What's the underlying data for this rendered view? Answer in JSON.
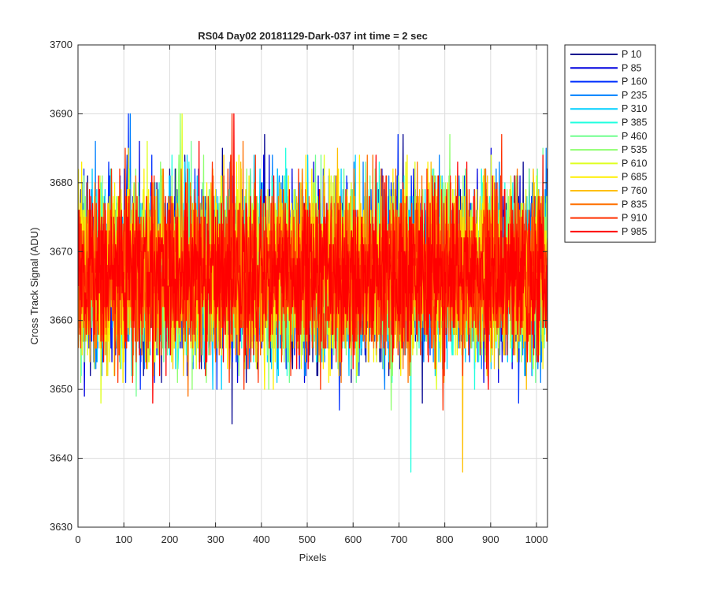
{
  "chart_data": {
    "type": "line",
    "title": "RS04 Day02 20181129-Dark-037 int time = 2 sec",
    "xlabel": "Pixels",
    "ylabel": "Cross Track Signal (ADU)",
    "xlim": [
      0,
      1024
    ],
    "ylim": [
      3630,
      3700
    ],
    "xticks": [
      0,
      100,
      200,
      300,
      400,
      500,
      600,
      700,
      800,
      900,
      1000
    ],
    "yticks": [
      3630,
      3640,
      3650,
      3660,
      3670,
      3680,
      3690,
      3700
    ],
    "grid": true,
    "legend_position": "outside-top-right",
    "noise_center": 3667,
    "noise_sigma": 6,
    "series": [
      {
        "name": "P 10",
        "color": "#00008f"
      },
      {
        "name": "P 85",
        "color": "#0000df"
      },
      {
        "name": "P 160",
        "color": "#0030ff"
      },
      {
        "name": "P 235",
        "color": "#0080ff"
      },
      {
        "name": "P 310",
        "color": "#00cfff"
      },
      {
        "name": "P 385",
        "color": "#20ffdf"
      },
      {
        "name": "P 460",
        "color": "#70ff8f"
      },
      {
        "name": "P 535",
        "color": "#8fff70"
      },
      {
        "name": "P 610",
        "color": "#dfff20"
      },
      {
        "name": "P 685",
        "color": "#ffef00"
      },
      {
        "name": "P 760",
        "color": "#ffbf00"
      },
      {
        "name": "P 835",
        "color": "#ff7000"
      },
      {
        "name": "P 910",
        "color": "#ff3000"
      },
      {
        "name": "P 985",
        "color": "#ff0000"
      }
    ]
  }
}
